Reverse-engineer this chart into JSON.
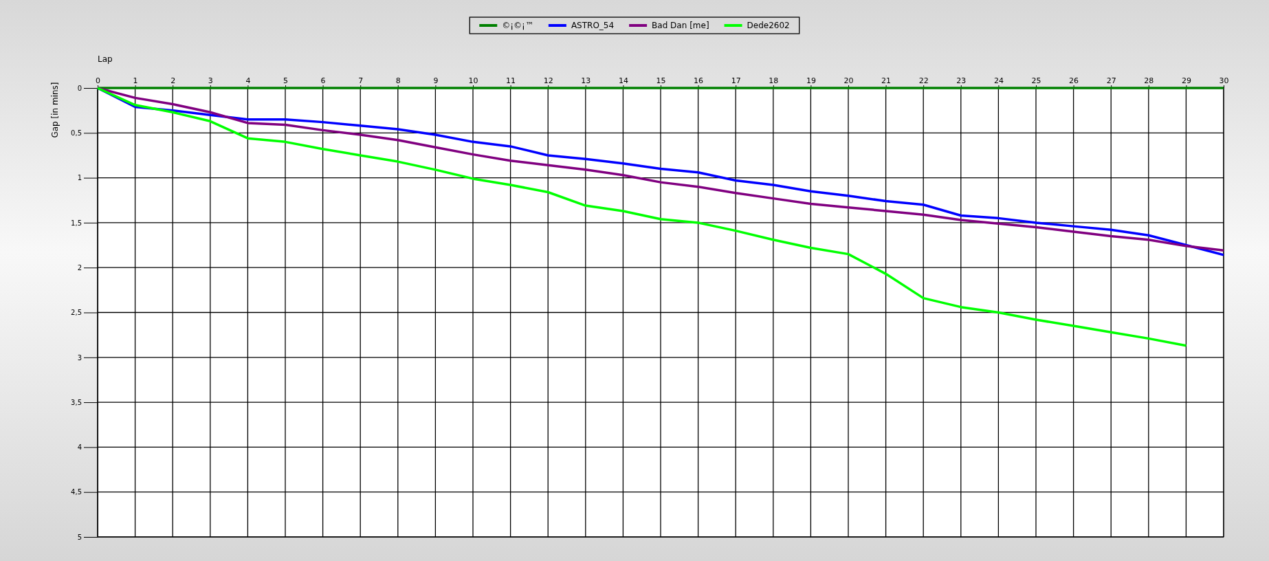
{
  "chart_data": {
    "type": "line",
    "xlabel": "Lap",
    "ylabel": "Gap [in mins]",
    "x": [
      0,
      1,
      2,
      3,
      4,
      5,
      6,
      7,
      8,
      9,
      10,
      11,
      12,
      13,
      14,
      15,
      16,
      17,
      18,
      19,
      20,
      21,
      22,
      23,
      24,
      25,
      26,
      27,
      28,
      29,
      30
    ],
    "xlim": [
      0,
      30
    ],
    "xticks": [
      0,
      1,
      2,
      3,
      4,
      5,
      6,
      7,
      8,
      9,
      10,
      11,
      12,
      13,
      14,
      15,
      16,
      17,
      18,
      19,
      20,
      21,
      22,
      23,
      24,
      25,
      26,
      27,
      28,
      29,
      30
    ],
    "ylim": [
      5,
      0
    ],
    "yticks": [
      0,
      {
        "value": 0.5,
        "label": "0,5"
      },
      1,
      {
        "value": 1.5,
        "label": "1,5"
      },
      2,
      {
        "value": 2.5,
        "label": "2,5"
      },
      3,
      {
        "value": 3.5,
        "label": "3,5"
      },
      4,
      {
        "value": 4.5,
        "label": "4,5"
      },
      5
    ],
    "grid": true,
    "legend": "top",
    "marker": "none",
    "line_style": "solid",
    "series": [
      {
        "name": "©¡©¡™",
        "color": "#008000",
        "values": [
          0,
          0,
          0,
          0,
          0,
          0,
          0,
          0,
          0,
          0,
          0,
          0,
          0,
          0,
          0,
          0,
          0,
          0,
          0,
          0,
          0,
          0,
          0,
          0,
          0,
          0,
          0,
          0,
          0,
          0,
          0
        ]
      },
      {
        "name": "ASTRO_54",
        "color": "#0000ff",
        "values": [
          0,
          0.21,
          0.25,
          0.3,
          0.35,
          0.35,
          0.38,
          0.42,
          0.46,
          0.52,
          0.6,
          0.65,
          0.75,
          0.79,
          0.84,
          0.9,
          0.94,
          1.03,
          1.08,
          1.15,
          1.2,
          1.26,
          1.3,
          1.42,
          1.45,
          1.5,
          1.54,
          1.58,
          1.64,
          1.75,
          1.86
        ]
      },
      {
        "name": "Bad Dan [me]",
        "color": "#800080",
        "values": [
          0,
          0.11,
          0.18,
          0.27,
          0.39,
          0.41,
          0.47,
          0.52,
          0.58,
          0.66,
          0.74,
          0.81,
          0.86,
          0.91,
          0.97,
          1.05,
          1.1,
          1.17,
          1.23,
          1.29,
          1.33,
          1.37,
          1.41,
          1.47,
          1.51,
          1.55,
          1.6,
          1.65,
          1.69,
          1.76,
          1.81
        ]
      },
      {
        "name": "Dede2602",
        "color": "#00ff00",
        "values": [
          0,
          0.19,
          0.27,
          0.37,
          0.56,
          0.6,
          0.68,
          0.75,
          0.82,
          0.91,
          1.01,
          1.08,
          1.16,
          1.31,
          1.37,
          1.46,
          1.5,
          1.59,
          1.69,
          1.78,
          1.85,
          2.07,
          2.34,
          2.44,
          2.5,
          2.58,
          2.65,
          2.72,
          2.79,
          2.87,
          null
        ]
      }
    ]
  }
}
